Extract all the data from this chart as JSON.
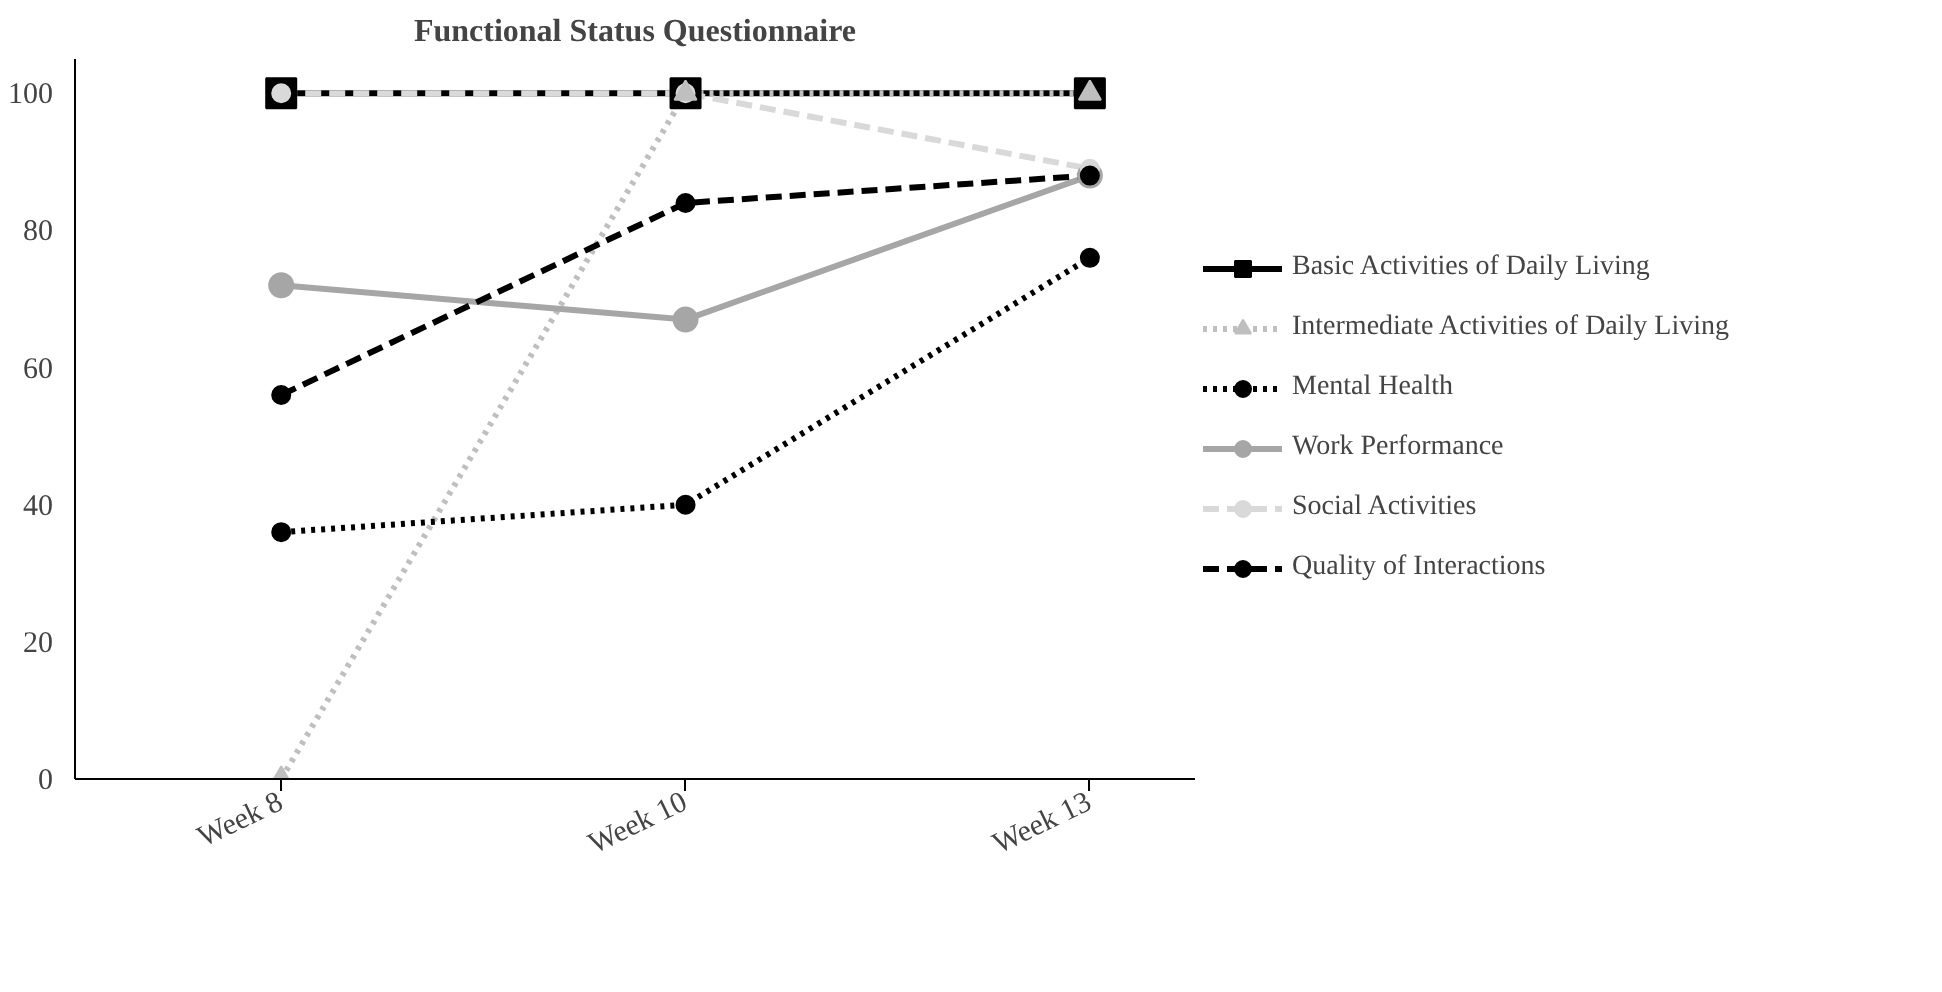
{
  "chart_data": {
    "type": "line",
    "title": "Functional Status Questionnaire",
    "categories": [
      "Week 8",
      "Week 10",
      "Week 13"
    ],
    "series": [
      {
        "name": "Basic Activities of Daily Living",
        "color": "#000000",
        "values": [
          100,
          100,
          100
        ],
        "marker": "square",
        "line_style": "solid"
      },
      {
        "name": "Intermediate Activities of Daily Living",
        "color": "#bfbfbf",
        "values": [
          0,
          100,
          100
        ],
        "marker": "triangle",
        "line_style": "dotted"
      },
      {
        "name": "Mental Health",
        "color": "#000000",
        "values": [
          36,
          40,
          76
        ],
        "marker": "circle",
        "line_style": "dotted"
      },
      {
        "name": "Work Performance",
        "color": "#a6a6a6",
        "values": [
          72,
          67,
          88
        ],
        "marker": "circle",
        "line_style": "solid"
      },
      {
        "name": "Social Activities",
        "color": "#d9d9d9",
        "values": [
          100,
          100,
          89
        ],
        "marker": "circle",
        "line_style": "dashed"
      },
      {
        "name": "Quality of Interactions",
        "color": "#000000",
        "values": [
          56,
          84,
          88
        ],
        "marker": "circle",
        "line_style": "dashed"
      }
    ],
    "ylim": [
      0,
      105
    ],
    "yticks": [
      0,
      20,
      40,
      60,
      80,
      100
    ],
    "grid": false,
    "legend": "right"
  }
}
